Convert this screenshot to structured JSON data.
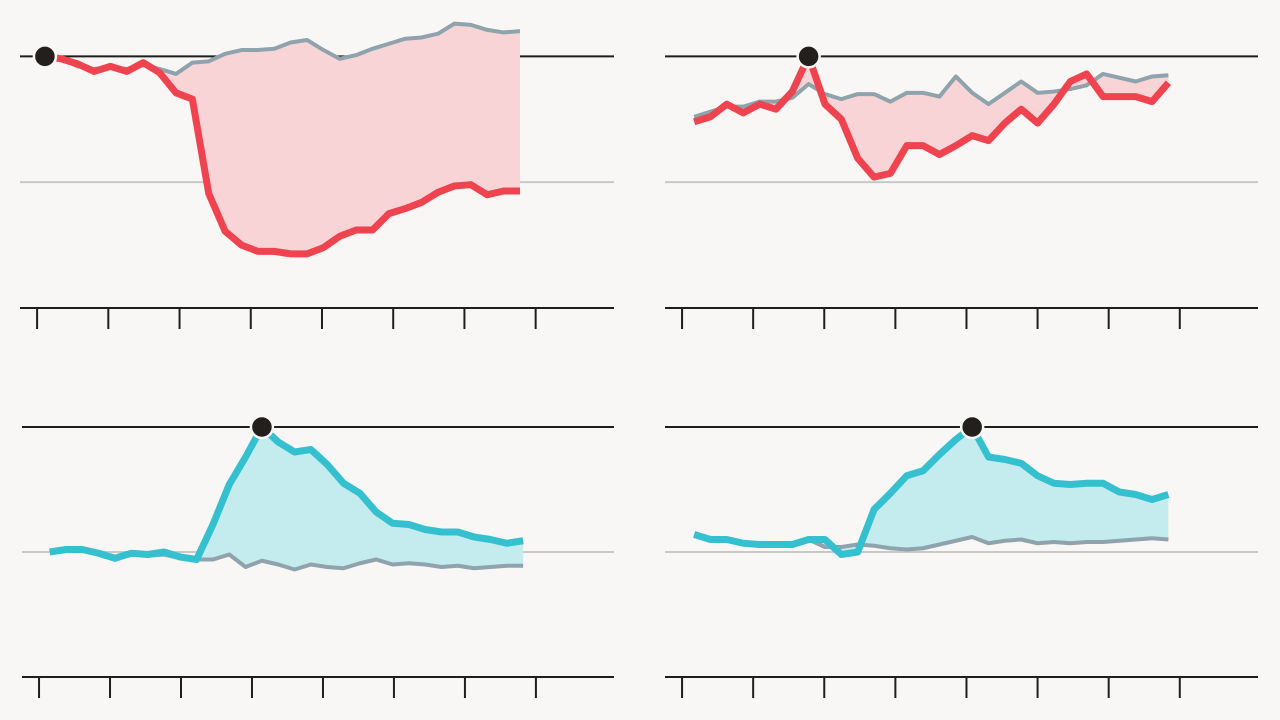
{
  "chart_data": [
    {
      "type": "line",
      "xlim": [
        -0.24,
        8.1
      ],
      "ylim": [
        -100,
        140
      ],
      "xticks": [
        0,
        1,
        2,
        3,
        4,
        5,
        6,
        7
      ],
      "yticks": [
        0,
        100
      ],
      "grid": true,
      "grid_colors": [
        "#c8c8c8",
        "#1e1e1e"
      ],
      "fill_color": "#f9d4d6",
      "highlight_index": 0,
      "highlight_color": "#231f1c",
      "x": [
        0.11,
        0.34,
        0.57,
        0.8,
        1.03,
        1.26,
        1.49,
        1.72,
        1.95,
        2.18,
        2.41,
        2.64,
        2.87,
        3.1,
        3.33,
        3.56,
        3.79,
        4.02,
        4.25,
        4.48,
        4.71,
        4.94,
        5.17,
        5.4,
        5.63,
        5.86,
        6.09,
        6.32,
        6.55,
        6.78
      ],
      "series": [
        {
          "color": "#8fa3ad",
          "values": [
            100,
            98,
            92,
            90,
            91,
            90,
            93,
            90,
            86,
            95,
            96,
            102,
            105,
            105,
            106,
            111,
            113,
            105,
            98,
            101,
            106,
            110,
            114,
            115,
            118,
            126,
            125,
            121,
            119,
            120
          ]
        },
        {
          "color": "#ef4450",
          "values": [
            100,
            98,
            94,
            88,
            92,
            88,
            95,
            87,
            71,
            66,
            -9,
            -39,
            -50,
            -55,
            -55,
            -57,
            -57,
            -52,
            -43,
            -38,
            -38,
            -25,
            -21,
            -16,
            -8,
            -3,
            -2,
            -10,
            -7,
            -7
          ]
        }
      ]
    },
    {
      "type": "line",
      "xlim": [
        -0.24,
        8.1
      ],
      "ylim": [
        -100,
        140
      ],
      "xticks": [
        0,
        1,
        2,
        3,
        4,
        5,
        6,
        7
      ],
      "yticks": [
        0,
        100
      ],
      "grid": true,
      "grid_colors": [
        "#c8c8c8",
        "#1e1e1e"
      ],
      "fill_color": "#f9d4d6",
      "highlight_index": 7,
      "highlight_color": "#231f1c",
      "x": [
        0.17,
        0.4,
        0.63,
        0.86,
        1.09,
        1.32,
        1.55,
        1.78,
        2.01,
        2.24,
        2.47,
        2.7,
        2.93,
        3.16,
        3.39,
        3.62,
        3.85,
        4.08,
        4.31,
        4.54,
        4.77,
        5.0,
        5.23,
        5.46,
        5.69,
        5.92,
        6.15,
        6.38,
        6.61,
        6.84
      ],
      "series": [
        {
          "color": "#8fa3ad",
          "values": [
            52,
            56,
            60,
            60,
            64,
            64,
            67,
            78,
            70,
            66,
            70,
            70,
            64,
            71,
            71,
            68,
            84,
            71,
            62,
            71,
            80,
            71,
            72,
            74,
            77,
            86,
            83,
            80,
            84,
            85
          ]
        },
        {
          "color": "#ef4450",
          "values": [
            48,
            52,
            62,
            55,
            62,
            58,
            72,
            100,
            62,
            50,
            19,
            4,
            7,
            29,
            29,
            22,
            29,
            37,
            33,
            47,
            58,
            47,
            62,
            80,
            86,
            68,
            68,
            68,
            64,
            79
          ]
        }
      ]
    },
    {
      "type": "line",
      "xlim": [
        -0.24,
        8.1
      ],
      "ylim": [
        -100,
        140
      ],
      "xticks": [
        0,
        1,
        2,
        3,
        4,
        5,
        6,
        7
      ],
      "yticks": [
        0,
        100
      ],
      "grid": true,
      "grid_colors": [
        "#c8c8c8",
        "#1e1e1e"
      ],
      "fill_color": "#c4ebee",
      "highlight_index": 13,
      "highlight_color": "#231f1c",
      "x": [
        0.15,
        0.38,
        0.61,
        0.84,
        1.07,
        1.3,
        1.53,
        1.76,
        1.99,
        2.22,
        2.45,
        2.68,
        2.91,
        3.14,
        3.37,
        3.6,
        3.83,
        4.06,
        4.29,
        4.52,
        4.75,
        4.98,
        5.21,
        5.44,
        5.67,
        5.9,
        6.13,
        6.36,
        6.59,
        6.82
      ],
      "series": [
        {
          "color": "#8fa3ad",
          "values": [
            0,
            2,
            2,
            -1,
            -5,
            -1,
            -3,
            -2,
            -5,
            -6,
            -6,
            -2,
            -12,
            -7,
            -10,
            -14,
            -10,
            -12,
            -13,
            -9,
            -6,
            -10,
            -9,
            -10,
            -12,
            -11,
            -13,
            -12,
            -11,
            -11
          ]
        },
        {
          "color": "#35c0d0",
          "values": [
            0,
            2,
            2,
            -1,
            -5,
            -1,
            -2,
            0,
            -4,
            -6,
            22,
            54,
            76,
            100,
            88,
            80,
            82,
            70,
            55,
            47,
            32,
            23,
            22,
            18,
            16,
            16,
            12,
            10,
            7,
            9
          ]
        }
      ]
    },
    {
      "type": "line",
      "xlim": [
        -0.24,
        8.1
      ],
      "ylim": [
        -100,
        140
      ],
      "xticks": [
        0,
        1,
        2,
        3,
        4,
        5,
        6,
        7
      ],
      "yticks": [
        0,
        100
      ],
      "grid": true,
      "grid_colors": [
        "#c8c8c8",
        "#1e1e1e"
      ],
      "fill_color": "#c4ebee",
      "highlight_index": 17,
      "highlight_color": "#231f1c",
      "x": [
        0.17,
        0.4,
        0.63,
        0.86,
        1.09,
        1.32,
        1.55,
        1.78,
        2.01,
        2.24,
        2.47,
        2.7,
        2.93,
        3.16,
        3.39,
        3.62,
        3.85,
        4.08,
        4.31,
        4.54,
        4.77,
        5.0,
        5.23,
        5.46,
        5.69,
        5.92,
        6.15,
        6.38,
        6.61,
        6.84
      ],
      "series": [
        {
          "color": "#8fa3ad",
          "values": [
            14,
            10,
            10,
            7,
            6,
            6,
            6,
            10,
            4,
            4,
            6,
            5,
            3,
            2,
            3,
            6,
            9,
            12,
            7,
            9,
            10,
            7,
            8,
            7,
            8,
            8,
            9,
            10,
            11,
            10
          ]
        },
        {
          "color": "#35c0d0",
          "values": [
            14,
            10,
            10,
            7,
            6,
            6,
            6,
            10,
            10,
            -2,
            0,
            34,
            47,
            61,
            65,
            78,
            90,
            100,
            76,
            74,
            71,
            61,
            55,
            54,
            55,
            55,
            48,
            46,
            42,
            46
          ]
        }
      ]
    }
  ]
}
